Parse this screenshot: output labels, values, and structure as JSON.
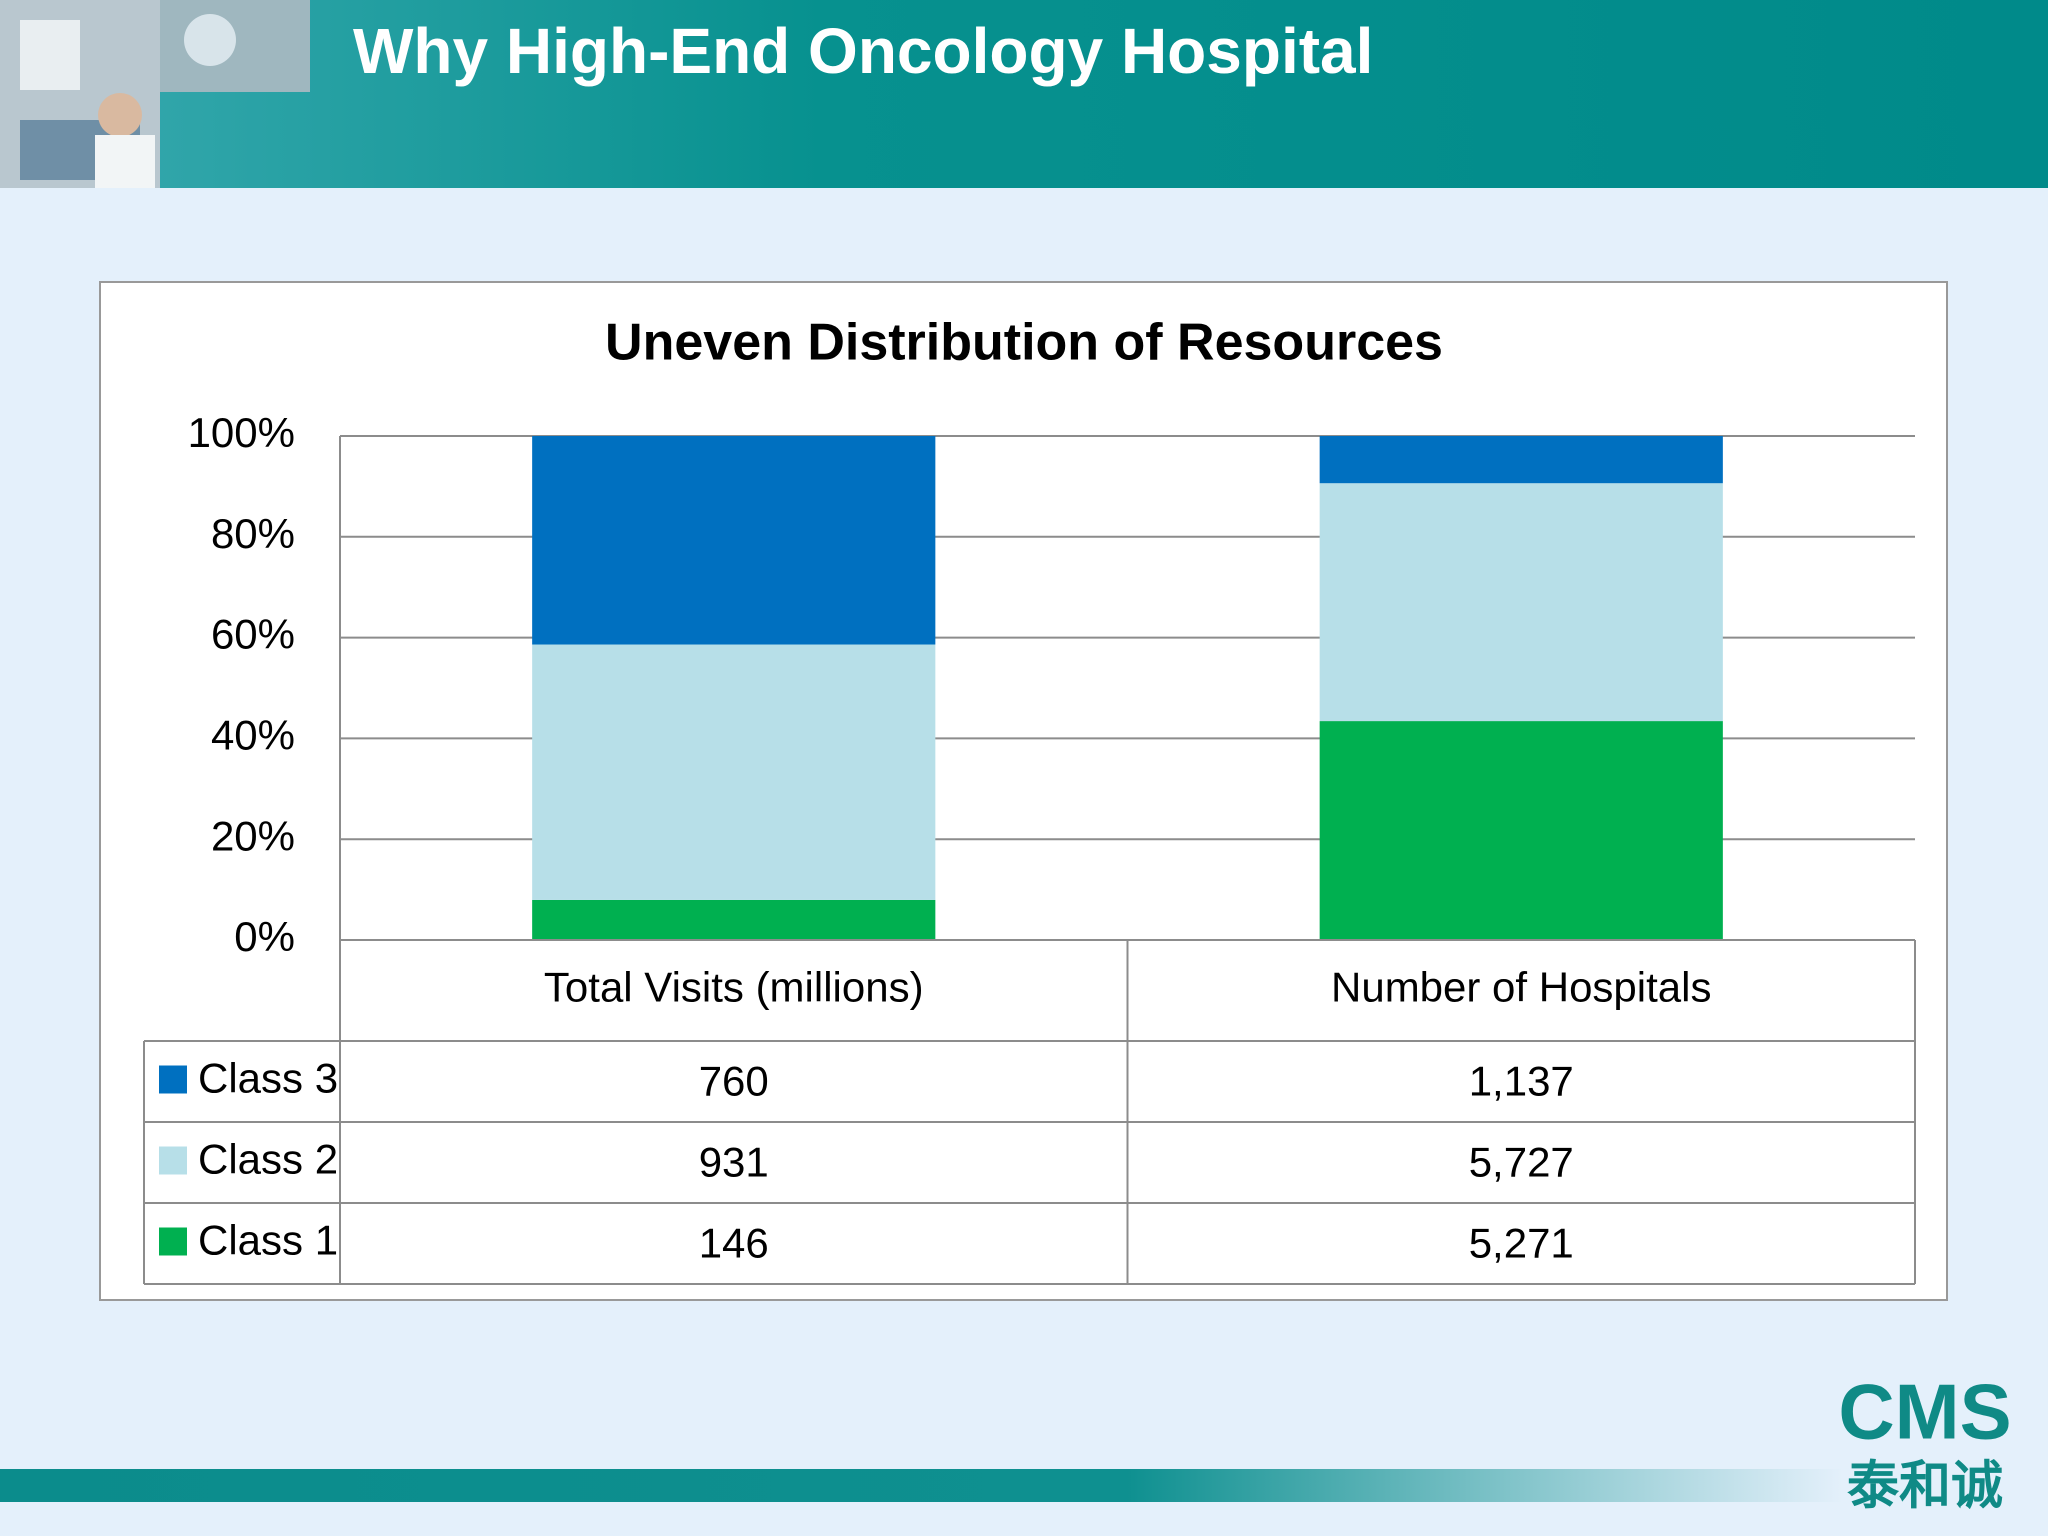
{
  "header": {
    "title": "Why High-End Oncology Hospital"
  },
  "chart_data": {
    "type": "stacked_bar_percent",
    "title": "Uneven Distribution of Resources",
    "categories": [
      "Total Visits (millions)",
      "Number of Hospitals"
    ],
    "series": [
      {
        "name": "Class 3",
        "color": "#0070c0",
        "values": [
          760,
          1137
        ],
        "value_labels": [
          "760",
          "1,137"
        ]
      },
      {
        "name": "Class 2",
        "color": "#b7dfe8",
        "values": [
          931,
          5727
        ],
        "value_labels": [
          "931",
          "5,727"
        ]
      },
      {
        "name": "Class 1",
        "color": "#00b050",
        "values": [
          146,
          5271
        ],
        "value_labels": [
          "146",
          "5,271"
        ]
      }
    ],
    "ylim": [
      0,
      100
    ],
    "yticks": [
      {
        "value": 0,
        "label": "0%"
      },
      {
        "value": 20,
        "label": "20%"
      },
      {
        "value": 40,
        "label": "40%"
      },
      {
        "value": 60,
        "label": "60%"
      },
      {
        "value": 80,
        "label": "80%"
      },
      {
        "value": 100,
        "label": "100%"
      }
    ],
    "grid": true,
    "data_table": true
  },
  "logo": {
    "name": "CMS",
    "subtitle": "泰和诚"
  }
}
